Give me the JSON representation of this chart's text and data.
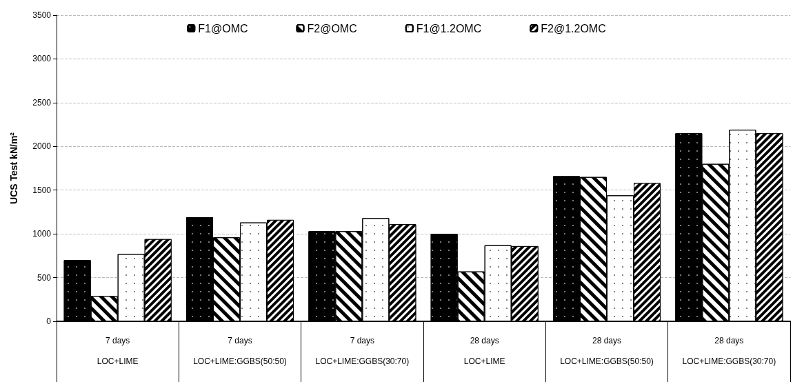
{
  "chart_data": {
    "type": "bar",
    "ylabel": "UCS Test kN/m²",
    "categories": [
      "7 days\n\nLOC+LIME",
      "7 days\n\nLOC+LIME:GGBS(50:50)",
      "7 days\n\nLOC+LIME:GGBS(30:70)",
      "28 days\n\nLOC+LIME",
      "28 days\n\nLOC+LIME:GGBS(50:50)",
      "28 days\n\nLOC+LIME:GGBS(30:70)"
    ],
    "series": [
      {
        "name": "F1@OMC",
        "color": "#000000",
        "values": [
          700,
          1190,
          1030,
          1000,
          1660,
          2150
        ]
      },
      {
        "name": "F2@OMC",
        "color": "#ffffff",
        "values": [
          290,
          960,
          1030,
          570,
          1650,
          1800
        ]
      },
      {
        "name": "F1@1.2OMC",
        "color": "#ffffff",
        "values": [
          770,
          1130,
          1180,
          870,
          1440,
          2190
        ]
      },
      {
        "name": "F2@1.2OMC",
        "color": "#000000",
        "values": [
          940,
          1160,
          1110,
          860,
          1580,
          2150
        ]
      }
    ],
    "ylim": [
      0,
      3500
    ],
    "yticks": [
      0,
      500,
      1000,
      1500,
      2000,
      2500,
      3000,
      3500
    ],
    "grid": "y",
    "legend": "top"
  }
}
